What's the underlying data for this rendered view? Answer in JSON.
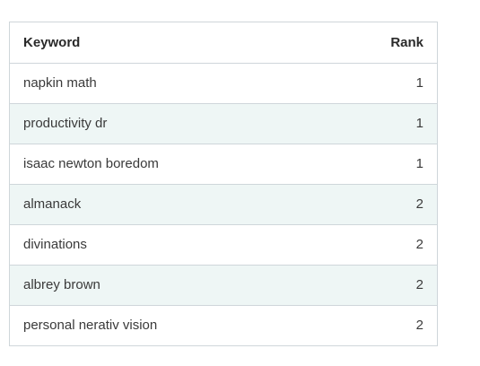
{
  "table": {
    "headers": {
      "keyword": "Keyword",
      "rank": "Rank"
    },
    "rows": [
      {
        "keyword": "napkin math",
        "rank": "1"
      },
      {
        "keyword": "productivity dr",
        "rank": "1"
      },
      {
        "keyword": "isaac newton boredom",
        "rank": "1"
      },
      {
        "keyword": "almanack",
        "rank": "2"
      },
      {
        "keyword": "divinations",
        "rank": "2"
      },
      {
        "keyword": "albrey brown",
        "rank": "2"
      },
      {
        "keyword": "personal nerativ vision",
        "rank": "2"
      }
    ]
  }
}
